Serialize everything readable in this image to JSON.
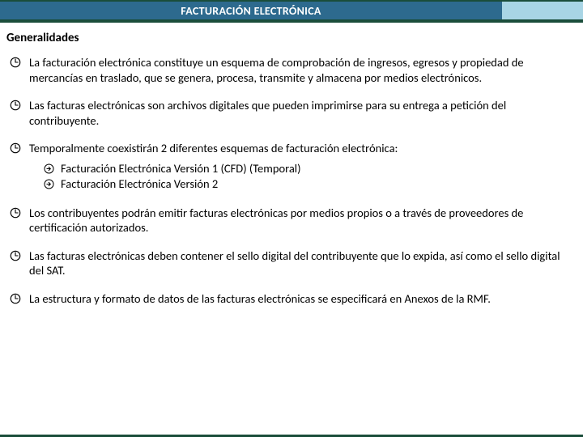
{
  "title": "FACTURACIÓN ELECTRÓNICA",
  "subtitle": "Generalidades",
  "colors": {
    "title_bg": "#2d6a8e",
    "title_accent": "#a8d5e5",
    "border_dark": "#1a4d3a",
    "text": "#000000",
    "icon": "#000000"
  },
  "fontsize": {
    "title": 14,
    "subtitle": 15,
    "body": 14.5
  },
  "bullets": [
    {
      "text": "La facturación electrónica constituye un esquema de comprobación de ingresos, egresos y propiedad de mercancías en traslado, que se genera, procesa, transmite y almacena por medios electrónicos.",
      "sub": []
    },
    {
      "text": "Las facturas electrónicas son archivos digitales que pueden imprimirse para su entrega a petición del contribuyente.",
      "sub": []
    },
    {
      "text": "Temporalmente coexistirán 2 diferentes esquemas de facturación electrónica:",
      "sub": [
        "Facturación Electrónica Versión 1 (CFD) (Temporal)",
        "Facturación Electrónica Versión 2"
      ]
    },
    {
      "text": "Los contribuyentes podrán emitir facturas electrónicas por medios propios o a través de proveedores de certificación autorizados.",
      "sub": []
    },
    {
      "text": "Las facturas electrónicas deben contener el sello digital del contribuyente que lo expida, así como el sello digital del SAT.",
      "sub": []
    },
    {
      "text": "La estructura y formato de datos de las facturas electrónicas se especificará en Anexos de la RMF.",
      "sub": []
    }
  ]
}
